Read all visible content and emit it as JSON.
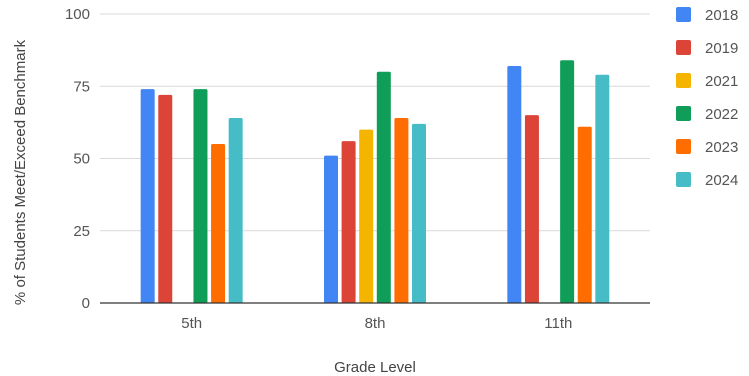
{
  "chart_data": {
    "type": "bar",
    "title": "",
    "xlabel": "Grade Level",
    "ylabel": "% of Students Meet/Exceed Benchmark",
    "ylim": [
      0,
      100
    ],
    "yticks": [
      0,
      25,
      50,
      75,
      100
    ],
    "grid": true,
    "legend_position": "right",
    "categories": [
      "5th",
      "8th",
      "11th"
    ],
    "series": [
      {
        "name": "2018",
        "color": "#4285f4",
        "values": [
          74,
          51,
          82
        ]
      },
      {
        "name": "2019",
        "color": "#db4437",
        "values": [
          72,
          56,
          65
        ]
      },
      {
        "name": "2021",
        "color": "#f4b400",
        "values": [
          null,
          60,
          null
        ]
      },
      {
        "name": "2022",
        "color": "#0f9d58",
        "values": [
          74,
          80,
          84
        ]
      },
      {
        "name": "2023",
        "color": "#ff6d01",
        "values": [
          55,
          64,
          61
        ]
      },
      {
        "name": "2024",
        "color": "#46bdc6",
        "values": [
          64,
          62,
          79
        ]
      }
    ]
  }
}
